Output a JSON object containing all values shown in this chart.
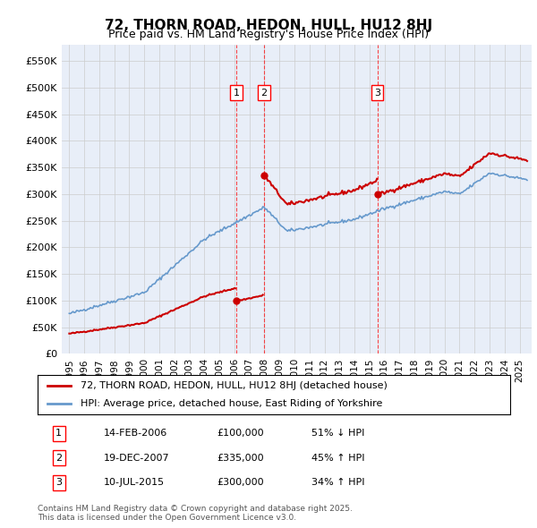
{
  "title": "72, THORN ROAD, HEDON, HULL, HU12 8HJ",
  "subtitle": "Price paid vs. HM Land Registry's House Price Index (HPI)",
  "legend_property": "72, THORN ROAD, HEDON, HULL, HU12 8HJ (detached house)",
  "legend_hpi": "HPI: Average price, detached house, East Riding of Yorkshire",
  "property_color": "#cc0000",
  "hpi_color": "#6699cc",
  "vline_color": "red",
  "grid_color": "#cccccc",
  "bg_color": "#e8eef8",
  "sale_dates": [
    2006.12,
    2007.97,
    2015.52
  ],
  "sale_prices": [
    100000,
    335000,
    300000
  ],
  "sale_labels": [
    "1",
    "2",
    "3"
  ],
  "table_rows": [
    [
      "1",
      "14-FEB-2006",
      "£100,000",
      "51% ↓ HPI"
    ],
    [
      "2",
      "19-DEC-2007",
      "£335,000",
      "45% ↑ HPI"
    ],
    [
      "3",
      "10-JUL-2015",
      "£300,000",
      "34% ↑ HPI"
    ]
  ],
  "copyright_text": "Contains HM Land Registry data © Crown copyright and database right 2025.\nThis data is licensed under the Open Government Licence v3.0.",
  "ylim": [
    0,
    580000
  ],
  "yticks": [
    0,
    50000,
    100000,
    150000,
    200000,
    250000,
    300000,
    350000,
    400000,
    450000,
    500000,
    550000
  ],
  "ytick_labels": [
    "£0",
    "£50K",
    "£100K",
    "£150K",
    "£200K",
    "£250K",
    "£300K",
    "£350K",
    "£400K",
    "£450K",
    "£500K",
    "£550K"
  ]
}
